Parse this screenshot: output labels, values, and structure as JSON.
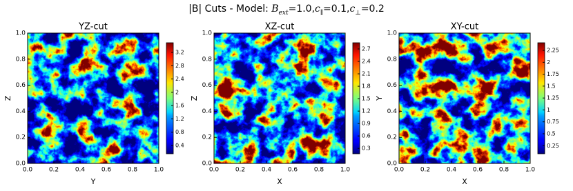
{
  "suptitle": [
    {
      "text": "|B| Cuts - Model: "
    },
    {
      "text": "B",
      "italic": true
    },
    {
      "text": "ext",
      "italic": true,
      "sub": true
    },
    {
      "text": "=1.0,"
    },
    {
      "text": "c",
      "italic": true
    },
    {
      "text": "∥",
      "sub": true
    },
    {
      "text": "=0.1,"
    },
    {
      "text": "c",
      "italic": true
    },
    {
      "text": "⊥",
      "sub": true
    },
    {
      "text": "=0.2"
    }
  ],
  "chart_data": [
    {
      "type": "heatmap",
      "title": "YZ-cut",
      "xlabel": "Y",
      "ylabel": "Z",
      "colormap": "jet",
      "xlim": [
        0,
        1
      ],
      "ylim": [
        0,
        1
      ],
      "xticks": [
        {
          "value": 0,
          "label": "0.0"
        },
        {
          "value": 0.2,
          "label": "0.2"
        },
        {
          "value": 0.4,
          "label": "0.4"
        },
        {
          "value": 0.6,
          "label": "0.6"
        },
        {
          "value": 0.8,
          "label": "0.8"
        },
        {
          "value": 1,
          "label": "1.0"
        }
      ],
      "yticks": [
        {
          "value": 0,
          "label": "0.0"
        },
        {
          "value": 0.2,
          "label": "0.2"
        },
        {
          "value": 0.4,
          "label": "0.4"
        },
        {
          "value": 0.6,
          "label": "0.6"
        },
        {
          "value": 0.8,
          "label": "0.8"
        },
        {
          "value": 1,
          "label": "1.0"
        }
      ],
      "clim": [
        0.15,
        3.49
      ],
      "cticks": [
        0.4,
        0.8,
        1.2,
        1.6,
        2.0,
        2.4,
        2.8,
        3.2
      ]
    },
    {
      "type": "heatmap",
      "title": "XZ-cut",
      "xlabel": "X",
      "ylabel": "Z",
      "colormap": "jet",
      "xlim": [
        0,
        1
      ],
      "ylim": [
        0,
        1
      ],
      "xticks": [
        {
          "value": 0,
          "label": "0.0"
        },
        {
          "value": 0.2,
          "label": "0.2"
        },
        {
          "value": 0.4,
          "label": "0.4"
        },
        {
          "value": 0.6,
          "label": "0.6"
        },
        {
          "value": 0.8,
          "label": "0.8"
        },
        {
          "value": 1,
          "label": "1.0"
        }
      ],
      "yticks": [
        {
          "value": 0,
          "label": "0.0"
        },
        {
          "value": 0.2,
          "label": "0.2"
        },
        {
          "value": 0.4,
          "label": "0.4"
        },
        {
          "value": 0.6,
          "label": "0.6"
        },
        {
          "value": 0.8,
          "label": "0.8"
        },
        {
          "value": 1,
          "label": "1.0"
        }
      ],
      "clim": [
        0.17,
        2.85
      ],
      "cticks": [
        0.3,
        0.6,
        0.9,
        1.2,
        1.5,
        1.8,
        2.1,
        2.4,
        2.7
      ]
    },
    {
      "type": "heatmap",
      "title": "XY-cut",
      "xlabel": "X",
      "ylabel": "Y",
      "colormap": "jet",
      "xlim": [
        0,
        1
      ],
      "ylim": [
        0,
        1
      ],
      "xticks": [
        {
          "value": 0,
          "label": "0.0"
        },
        {
          "value": 0.2,
          "label": "0.2"
        },
        {
          "value": 0.4,
          "label": "0.4"
        },
        {
          "value": 0.6,
          "label": "0.6"
        },
        {
          "value": 0.8,
          "label": "0.8"
        },
        {
          "value": 1,
          "label": "1.0"
        }
      ],
      "yticks": [
        {
          "value": 0,
          "label": "0.0"
        },
        {
          "value": 0.2,
          "label": "0.2"
        },
        {
          "value": 0.4,
          "label": "0.4"
        },
        {
          "value": 0.6,
          "label": "0.6"
        },
        {
          "value": 0.8,
          "label": "0.8"
        },
        {
          "value": 1,
          "label": "1.0"
        }
      ],
      "clim": [
        0.08,
        2.41
      ],
      "cticks": [
        0.25,
        0.5,
        0.75,
        1.0,
        1.25,
        1.5,
        1.75,
        2.0,
        2.25
      ]
    }
  ]
}
